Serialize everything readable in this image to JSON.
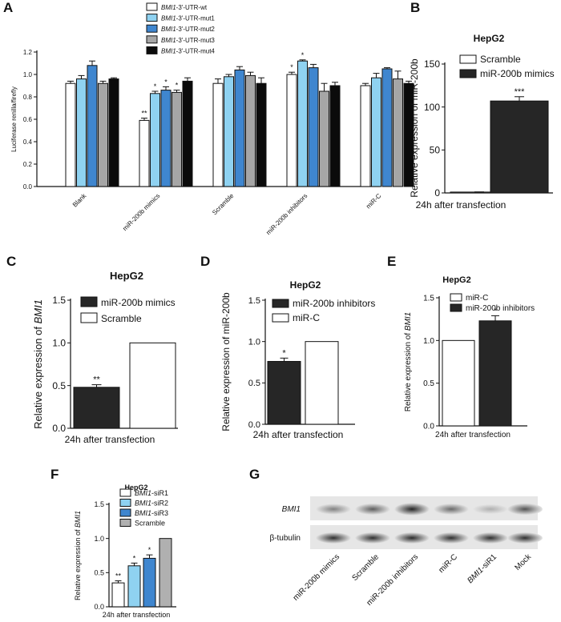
{
  "colors": {
    "wt": "#ffffff",
    "mut1": "#8fd2f1",
    "mut2": "#3f86cf",
    "mut3": "#a6a6a6",
    "mut4": "#0b0b0b",
    "dark": "#262626",
    "white": "#ffffff",
    "gray": "#b0b0b0"
  },
  "chart_data": [
    {
      "panel": "A",
      "type": "bar",
      "title": "",
      "xlabel": "",
      "ylabel": "Luciferase renilla/firefly",
      "ylim": [
        0,
        1.2
      ],
      "yticks": [
        "0.0",
        "0.2",
        "0.4",
        "0.6",
        "0.8",
        "1.0",
        "1.2"
      ],
      "categories": [
        "Blank",
        "miR-200b mimics",
        "Scramble",
        "miR-200b inhibitors",
        "miR-C"
      ],
      "series": [
        {
          "name": "BMI1-3'-UTR-wt",
          "gene": "BMI1",
          "suffix": "-3'-UTR-wt",
          "color_key": "wt",
          "values": [
            0.92,
            0.59,
            0.92,
            1.0,
            0.9
          ],
          "errors": [
            0.02,
            0.02,
            0.04,
            0.02,
            0.02
          ],
          "sig": [
            "",
            "**",
            "",
            "*",
            ""
          ]
        },
        {
          "name": "BMI1-3'-UTR-mut1",
          "gene": "BMI1",
          "suffix": "-3'-UTR-mut1",
          "color_key": "mut1",
          "values": [
            0.96,
            0.83,
            0.98,
            1.12,
            0.97
          ],
          "errors": [
            0.03,
            0.02,
            0.02,
            0.01,
            0.04
          ],
          "sig": [
            "",
            "*",
            "",
            "*",
            ""
          ]
        },
        {
          "name": "BMI1-3'-UTR-mut2",
          "gene": "BMI1",
          "suffix": "-3'-UTR-mut2",
          "color_key": "mut2",
          "values": [
            1.08,
            0.86,
            1.04,
            1.06,
            1.05
          ],
          "errors": [
            0.04,
            0.03,
            0.03,
            0.03,
            0.01
          ],
          "sig": [
            "",
            "*",
            "",
            "",
            ""
          ]
        },
        {
          "name": "BMI1-3'-UTR-mut3",
          "gene": "BMI1",
          "suffix": "-3'-UTR-mut3",
          "color_key": "mut3",
          "values": [
            0.92,
            0.84,
            0.99,
            0.85,
            0.96
          ],
          "errors": [
            0.02,
            0.02,
            0.03,
            0.07,
            0.07
          ],
          "sig": [
            "",
            "*",
            "",
            "",
            ""
          ]
        },
        {
          "name": "BMI1-3'-UTR-mut4",
          "gene": "BMI1",
          "suffix": "-3'-UTR-mut4",
          "color_key": "mut4",
          "values": [
            0.96,
            0.94,
            0.92,
            0.9,
            0.92
          ],
          "errors": [
            0.01,
            0.03,
            0.05,
            0.03,
            0.02
          ],
          "sig": [
            "",
            "",
            "",
            "",
            ""
          ]
        }
      ]
    },
    {
      "panel": "B",
      "type": "bar",
      "title": "HepG2",
      "xlabel": "24h after transfection",
      "ylabel": "Relative expression of miR-200b",
      "ylim": [
        0,
        150
      ],
      "yticks": [
        "0",
        "50",
        "100",
        "150"
      ],
      "categories": [
        "24h after transfection"
      ],
      "series": [
        {
          "name": "Scramble",
          "color_key": "white",
          "values": [
            1.0
          ],
          "errors": [
            0.2
          ],
          "sig": [
            ""
          ]
        },
        {
          "name": "miR-200b mimics",
          "color_key": "dark",
          "values": [
            107
          ],
          "errors": [
            5
          ],
          "sig": [
            "***"
          ]
        }
      ]
    },
    {
      "panel": "C",
      "type": "bar",
      "title": "HepG2",
      "xlabel": "24h after transfection",
      "ylabel": "Relative expression of BMI1",
      "ylabel_prefix": "Relative expression of ",
      "ylabel_gene": "BMI1",
      "ylim": [
        0,
        1.5
      ],
      "yticks": [
        "0.0",
        "0.5",
        "1.0",
        "1.5"
      ],
      "categories": [
        "24h after transfection"
      ],
      "series": [
        {
          "name": "miR-200b mimics",
          "color_key": "dark",
          "values": [
            0.48
          ],
          "errors": [
            0.03
          ],
          "sig": [
            "**"
          ]
        },
        {
          "name": "Scramble",
          "color_key": "white",
          "values": [
            1.0
          ],
          "errors": [
            0
          ],
          "sig": [
            ""
          ]
        }
      ]
    },
    {
      "panel": "D",
      "type": "bar",
      "title": "HepG2",
      "xlabel": "24h after transfection",
      "ylabel": "Relative expression of miR-200b",
      "ylim": [
        0,
        1.5
      ],
      "yticks": [
        "0.0",
        "0.5",
        "1.0",
        "1.5"
      ],
      "categories": [
        "24h after transfection"
      ],
      "series": [
        {
          "name": "miR-200b inhibitors",
          "color_key": "dark",
          "values": [
            0.76
          ],
          "errors": [
            0.04
          ],
          "sig": [
            "*"
          ]
        },
        {
          "name": "miR-C",
          "color_key": "white",
          "values": [
            1.0
          ],
          "errors": [
            0
          ],
          "sig": [
            ""
          ]
        }
      ]
    },
    {
      "panel": "E",
      "type": "bar",
      "title": "HepG2",
      "xlabel": "24h after transfection",
      "ylabel": "Relative expression of BMI1",
      "ylabel_prefix": "Relative expression of ",
      "ylabel_gene": "BMI1",
      "ylim": [
        0,
        1.5
      ],
      "yticks": [
        "0.0",
        "0.5",
        "1.0",
        "1.5"
      ],
      "categories": [
        "24h after transfection"
      ],
      "series": [
        {
          "name": "miR-C",
          "color_key": "white",
          "values": [
            1.0
          ],
          "errors": [
            0
          ],
          "sig": [
            ""
          ]
        },
        {
          "name": "miR-200b inhibitors",
          "color_key": "dark",
          "values": [
            1.23
          ],
          "errors": [
            0.06
          ],
          "sig": [
            "*"
          ]
        }
      ]
    },
    {
      "panel": "F",
      "type": "bar",
      "title": "HepG2",
      "xlabel": "24h after transfection",
      "ylabel": "Relative expression of BMI1",
      "ylabel_prefix": "Relative expression of ",
      "ylabel_gene": "BMI1",
      "ylim": [
        0,
        1.5
      ],
      "yticks": [
        "0.0",
        "0.5",
        "1.0",
        "1.5"
      ],
      "categories": [
        "24h after transfection"
      ],
      "series": [
        {
          "name": "BMI1-siR1",
          "gene": "BMI1",
          "suffix": "-siR1",
          "color_key": "white",
          "values": [
            0.35
          ],
          "errors": [
            0.03
          ],
          "sig": [
            "**"
          ]
        },
        {
          "name": "BMI1-siR2",
          "gene": "BMI1",
          "suffix": "-siR2",
          "color_key": "mut1",
          "values": [
            0.6
          ],
          "errors": [
            0.04
          ],
          "sig": [
            "*"
          ]
        },
        {
          "name": "BMI1-siR3",
          "gene": "BMI1",
          "suffix": "-siR3",
          "color_key": "mut2",
          "values": [
            0.71
          ],
          "errors": [
            0.05
          ],
          "sig": [
            "*"
          ]
        },
        {
          "name": "Scramble",
          "color_key": "gray",
          "values": [
            1.0
          ],
          "errors": [
            0
          ],
          "sig": [
            ""
          ]
        }
      ]
    }
  ],
  "blot": {
    "panel": "G",
    "rows": [
      {
        "label": "BMI1",
        "italic": true,
        "intensity": [
          0.55,
          0.7,
          0.95,
          0.65,
          0.35,
          0.75
        ]
      },
      {
        "label": "β-tubulin",
        "italic": false,
        "intensity": [
          0.9,
          0.9,
          0.92,
          0.9,
          0.9,
          0.9
        ]
      }
    ],
    "lanes": [
      {
        "label": "miR-200b mimics"
      },
      {
        "label": "Scramble"
      },
      {
        "label": "miR-200b inhibitors"
      },
      {
        "label": "miR-C"
      },
      {
        "label": "BMI1-siR1",
        "gene": "BMI1",
        "suffix": "-siR1"
      },
      {
        "label": "Mock"
      }
    ]
  }
}
